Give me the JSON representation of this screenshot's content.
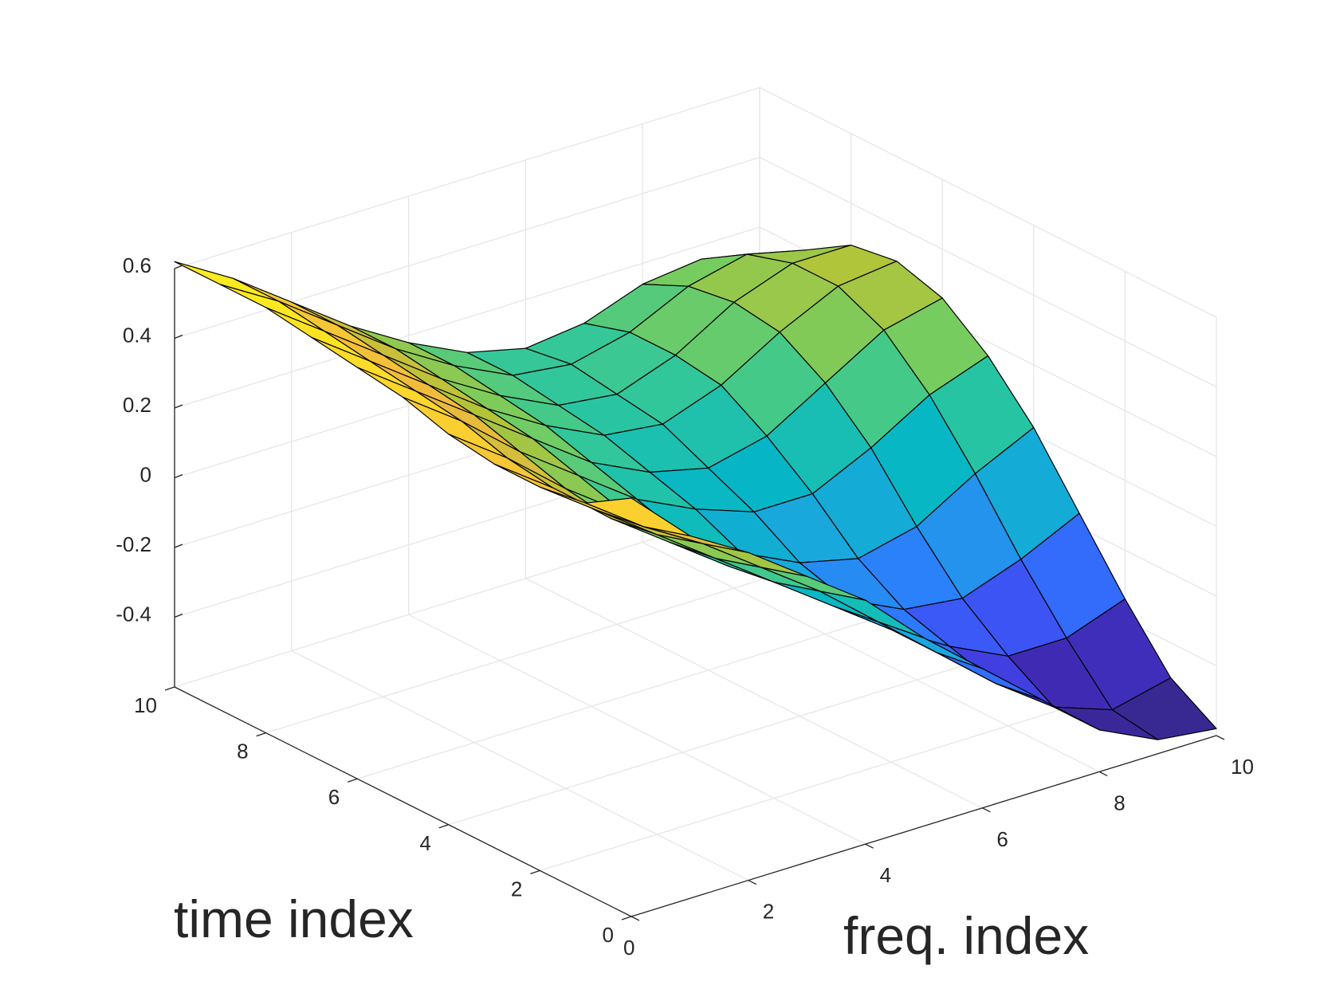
{
  "chart_data": {
    "type": "surface",
    "xlabel": "freq. index",
    "ylabel": "time index",
    "zlabel": "",
    "x": [
      0,
      1,
      2,
      3,
      4,
      5,
      6,
      7,
      8,
      9,
      10
    ],
    "y": [
      0,
      1,
      2,
      3,
      4,
      5,
      6,
      7,
      8,
      9,
      10
    ],
    "xlim": [
      0,
      10
    ],
    "ylim": [
      0,
      10
    ],
    "zlim": [
      -0.6,
      0.6
    ],
    "x_ticks": [
      "0",
      "2",
      "4",
      "6",
      "8",
      "10"
    ],
    "y_ticks": [
      "0",
      "2",
      "4",
      "6",
      "8",
      "10"
    ],
    "z_ticks": [
      "-0.4",
      "-0.2",
      "0",
      "0.2",
      "0.4",
      "0.6"
    ],
    "grid": true,
    "colormap": "parula",
    "colormap_stops": [
      "#352a87",
      "#3e26a8",
      "#4248f2",
      "#2d7aff",
      "#1ca6df",
      "#05b7c6",
      "#2ec79d",
      "#76cc60",
      "#b5c438",
      "#f0b93d",
      "#fcd62c",
      "#f9fb15"
    ],
    "edge_color": "#000000",
    "z": [
      [
        0.6,
        0.44,
        0.34,
        0.22,
        0.1,
        -0.06,
        -0.2,
        -0.34,
        -0.48,
        -0.56,
        -0.58
      ],
      [
        0.52,
        0.4,
        0.3,
        0.18,
        0.06,
        -0.08,
        -0.22,
        -0.36,
        -0.48,
        -0.54,
        -0.5
      ],
      [
        0.5,
        0.38,
        0.26,
        0.14,
        0.02,
        -0.1,
        -0.22,
        -0.32,
        -0.4,
        -0.4,
        -0.34
      ],
      [
        0.5,
        0.38,
        0.24,
        0.12,
        0.0,
        -0.1,
        -0.2,
        -0.28,
        -0.3,
        -0.24,
        -0.16
      ],
      [
        0.52,
        0.4,
        0.26,
        0.14,
        0.02,
        -0.08,
        -0.16,
        -0.2,
        -0.16,
        -0.06,
        0.02
      ],
      [
        0.56,
        0.44,
        0.3,
        0.18,
        0.06,
        -0.02,
        -0.08,
        -0.08,
        0.0,
        0.1,
        0.16
      ],
      [
        0.58,
        0.46,
        0.34,
        0.22,
        0.1,
        0.02,
        -0.02,
        0.02,
        0.12,
        0.22,
        0.26
      ],
      [
        0.6,
        0.48,
        0.36,
        0.24,
        0.14,
        0.06,
        0.04,
        0.1,
        0.2,
        0.28,
        0.3
      ],
      [
        0.62,
        0.5,
        0.38,
        0.26,
        0.16,
        0.08,
        0.06,
        0.12,
        0.22,
        0.28,
        0.28
      ],
      [
        0.62,
        0.52,
        0.4,
        0.28,
        0.18,
        0.1,
        0.08,
        0.12,
        0.2,
        0.24,
        0.2
      ],
      [
        0.62,
        0.52,
        0.4,
        0.28,
        0.18,
        0.1,
        0.06,
        0.08,
        0.14,
        0.16,
        0.1
      ]
    ]
  }
}
